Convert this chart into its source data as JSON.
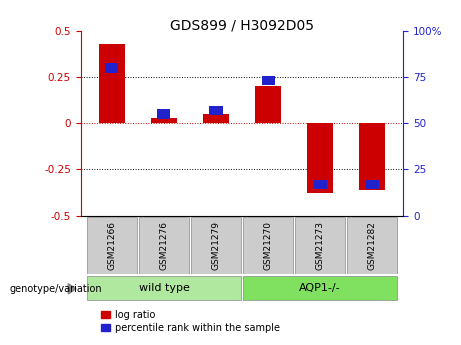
{
  "title": "GDS899 / H3092D05",
  "samples": [
    "GSM21266",
    "GSM21276",
    "GSM21279",
    "GSM21270",
    "GSM21273",
    "GSM21282"
  ],
  "log_ratio": [
    0.43,
    0.03,
    0.05,
    0.2,
    -0.38,
    -0.36
  ],
  "percentile_rank_pct": [
    80,
    55,
    57,
    73,
    17,
    17
  ],
  "groups": [
    {
      "label": "wild type",
      "indices": [
        0,
        1,
        2
      ],
      "color": "#b0e8a0"
    },
    {
      "label": "AQP1-/-",
      "indices": [
        3,
        4,
        5
      ],
      "color": "#80e060"
    }
  ],
  "ylim_left": [
    -0.5,
    0.5
  ],
  "ylim_right": [
    0,
    100
  ],
  "yticks_left": [
    -0.5,
    -0.25,
    0.0,
    0.25,
    0.5
  ],
  "yticks_right": [
    0,
    25,
    50,
    75,
    100
  ],
  "red_color": "#cc0000",
  "blue_color": "#2222cc",
  "zero_line_color": "#cc0000",
  "dotted_line_color": "#000000",
  "group_label": "genotype/variation",
  "legend_items": [
    "log ratio",
    "percentile rank within the sample"
  ],
  "bar_width": 0.5,
  "blue_bar_width": 0.25
}
